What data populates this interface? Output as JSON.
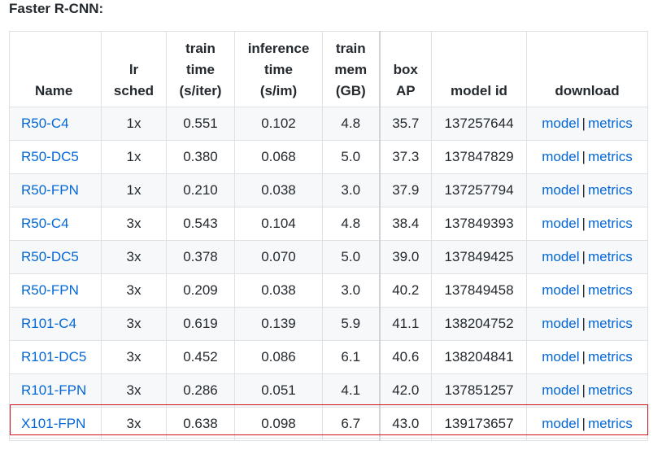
{
  "heading": "Faster R-CNN:",
  "columns": [
    {
      "lines": [
        "Name"
      ]
    },
    {
      "lines": [
        "lr",
        "sched"
      ]
    },
    {
      "lines": [
        "train",
        "time",
        "(s/iter)"
      ]
    },
    {
      "lines": [
        "inference",
        "time",
        "(s/im)"
      ]
    },
    {
      "lines": [
        "train",
        "mem",
        "(GB)"
      ]
    },
    {
      "lines": [
        "box",
        "AP"
      ]
    },
    {
      "lines": [
        "model id"
      ]
    },
    {
      "lines": [
        "download"
      ]
    }
  ],
  "link_labels": {
    "model": "model",
    "separator": "|",
    "metrics": "metrics"
  },
  "rows": [
    {
      "name": "R50-C4",
      "lr_sched": "1x",
      "train_time": "0.551",
      "inference_time": "0.102",
      "train_mem": "4.8",
      "box_ap": "35.7",
      "model_id": "137257644"
    },
    {
      "name": "R50-DC5",
      "lr_sched": "1x",
      "train_time": "0.380",
      "inference_time": "0.068",
      "train_mem": "5.0",
      "box_ap": "37.3",
      "model_id": "137847829"
    },
    {
      "name": "R50-FPN",
      "lr_sched": "1x",
      "train_time": "0.210",
      "inference_time": "0.038",
      "train_mem": "3.0",
      "box_ap": "37.9",
      "model_id": "137257794"
    },
    {
      "name": "R50-C4",
      "lr_sched": "3x",
      "train_time": "0.543",
      "inference_time": "0.104",
      "train_mem": "4.8",
      "box_ap": "38.4",
      "model_id": "137849393"
    },
    {
      "name": "R50-DC5",
      "lr_sched": "3x",
      "train_time": "0.378",
      "inference_time": "0.070",
      "train_mem": "5.0",
      "box_ap": "39.0",
      "model_id": "137849425"
    },
    {
      "name": "R50-FPN",
      "lr_sched": "3x",
      "train_time": "0.209",
      "inference_time": "0.038",
      "train_mem": "3.0",
      "box_ap": "40.2",
      "model_id": "137849458"
    },
    {
      "name": "R101-C4",
      "lr_sched": "3x",
      "train_time": "0.619",
      "inference_time": "0.139",
      "train_mem": "5.9",
      "box_ap": "41.1",
      "model_id": "138204752"
    },
    {
      "name": "R101-DC5",
      "lr_sched": "3x",
      "train_time": "0.452",
      "inference_time": "0.086",
      "train_mem": "6.1",
      "box_ap": "40.6",
      "model_id": "138204841"
    },
    {
      "name": "R101-FPN",
      "lr_sched": "3x",
      "train_time": "0.286",
      "inference_time": "0.051",
      "train_mem": "4.1",
      "box_ap": "42.0",
      "model_id": "137851257"
    },
    {
      "name": "X101-FPN",
      "lr_sched": "3x",
      "train_time": "0.638",
      "inference_time": "0.098",
      "train_mem": "6.7",
      "box_ap": "43.0",
      "model_id": "139173657"
    }
  ],
  "highlighted_row": "X101-FPN",
  "colors": {
    "link": "#0366d6",
    "text": "#24292e",
    "highlight_border": "#d0121b",
    "stripe": "#f6f8fa",
    "border": "#dfe2e5"
  }
}
